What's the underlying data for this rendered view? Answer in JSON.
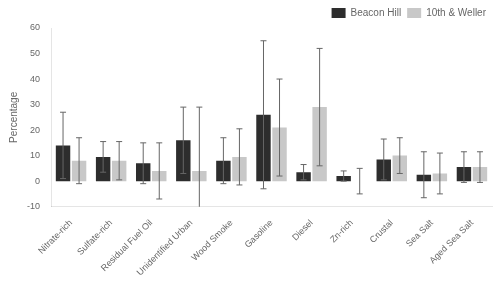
{
  "chart_data": {
    "type": "bar",
    "categories": [
      "Nitrate-rich",
      "Sulfate-rich",
      "Residual Fuel Oil",
      "Unidentified Urban",
      "Wood Smoke",
      "Gasoline",
      "Diesel",
      "Zn-rich",
      "Crustal",
      "Sea Salt",
      "Aged Sea Salt"
    ],
    "series": [
      {
        "name": "Beacon Hill",
        "color": "#2d2d2d",
        "values": [
          14,
          9.5,
          7,
          16,
          8,
          26,
          3.5,
          2,
          8.5,
          2.5,
          5.5
        ],
        "errors": [
          13,
          6,
          8,
          13,
          9,
          29,
          3,
          2,
          8,
          9,
          6
        ]
      },
      {
        "name": "10th & Weller",
        "color": "#c8c8c8",
        "values": [
          8,
          8,
          4,
          4,
          9.5,
          21,
          29,
          0,
          10,
          3,
          5.5
        ],
        "errors": [
          9,
          7.5,
          11,
          25,
          11,
          19,
          23,
          5,
          7,
          8,
          6
        ]
      }
    ],
    "ylabel": "Percentage",
    "ylim": [
      -10,
      60
    ],
    "yticks": [
      -10,
      0,
      10,
      20,
      30,
      40,
      50,
      60
    ],
    "grid": false,
    "legend": "upper right"
  }
}
